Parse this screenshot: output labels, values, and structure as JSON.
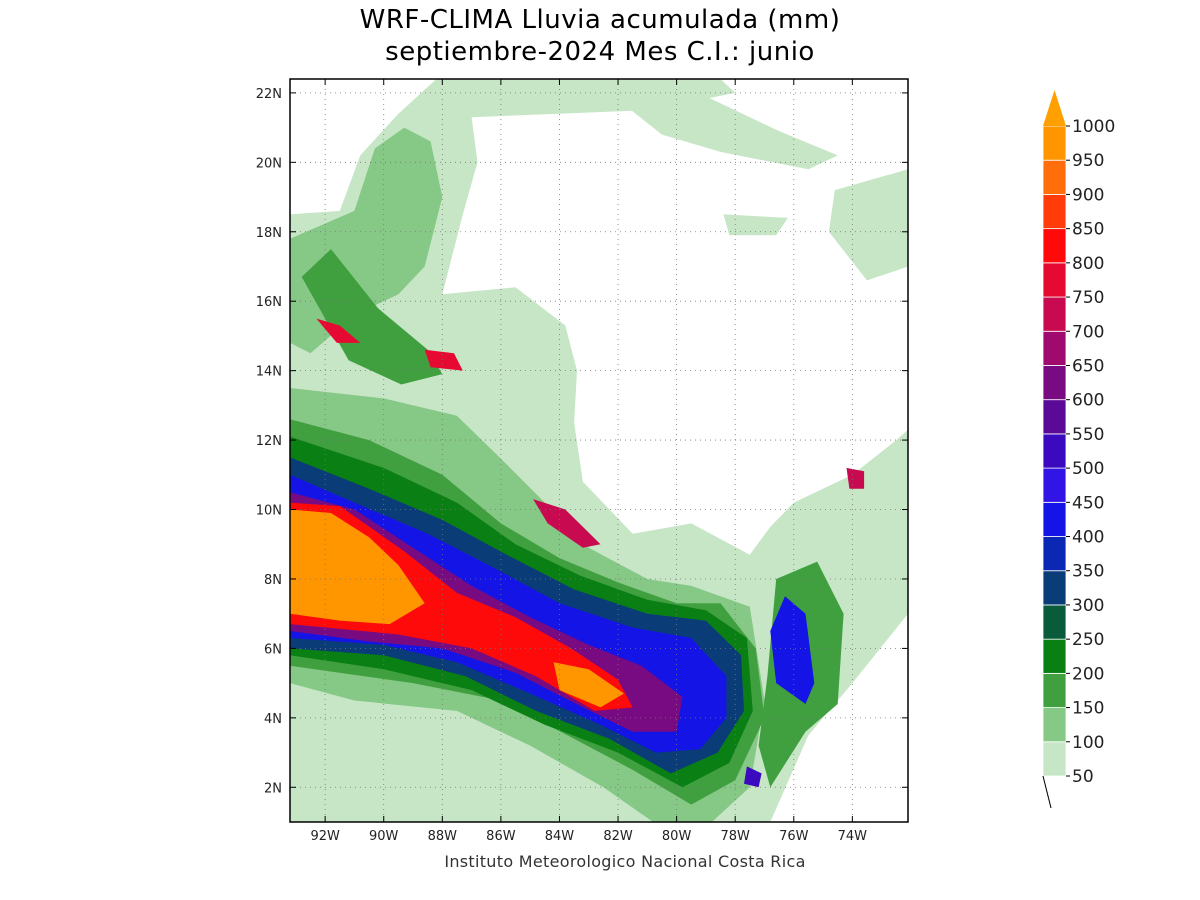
{
  "title": {
    "line1": "WRF-CLIMA Lluvia acumulada (mm)",
    "line2": "septiembre-2024 Mes C.I.: junio"
  },
  "credit": "Instituto Meteorologico Nacional Costa Rica",
  "axes": {
    "x_ticks": [
      "92W",
      "90W",
      "88W",
      "86W",
      "84W",
      "82W",
      "80W",
      "78W",
      "76W",
      "74W"
    ],
    "x_values": [
      -92,
      -90,
      -88,
      -86,
      -84,
      -82,
      -80,
      -78,
      -76,
      -74
    ],
    "y_ticks": [
      "2N",
      "4N",
      "6N",
      "8N",
      "10N",
      "12N",
      "14N",
      "16N",
      "18N",
      "20N",
      "22N"
    ],
    "y_values": [
      2,
      4,
      6,
      8,
      10,
      12,
      14,
      16,
      18,
      20,
      22
    ],
    "lon_range": [
      -93.2,
      -72.1
    ],
    "lat_range": [
      1.0,
      22.4
    ],
    "grid": true
  },
  "colorbar": {
    "levels": [
      "50",
      "100",
      "150",
      "200",
      "250",
      "300",
      "350",
      "400",
      "450",
      "500",
      "550",
      "600",
      "650",
      "700",
      "750",
      "800",
      "850",
      "900",
      "950",
      "1000"
    ],
    "colors": [
      "#c6e6c6",
      "#86c886",
      "#40a040",
      "#0a8014",
      "#0a5a3c",
      "#0a3c78",
      "#0a28b4",
      "#1414e6",
      "#3214e6",
      "#3c0abe",
      "#5a0a96",
      "#780a82",
      "#a00a6e",
      "#c80a50",
      "#e60a32",
      "#ff0a0a",
      "#ff3c0a",
      "#ff6e0a",
      "#ff9600"
    ],
    "overflow_color": "#ffa000"
  },
  "precip_areas": [
    {
      "level": 0,
      "points": [
        [
          -93.2,
          18.5
        ],
        [
          -91.5,
          18.6
        ],
        [
          -90.8,
          20.2
        ],
        [
          -89.5,
          21.4
        ],
        [
          -88.2,
          22.4
        ],
        [
          -78.5,
          22.4
        ],
        [
          -78.0,
          22.0
        ],
        [
          -81.0,
          21.5
        ],
        [
          -87.0,
          21.3
        ],
        [
          -86.8,
          20.0
        ],
        [
          -87.3,
          18.5
        ],
        [
          -88.0,
          16.2
        ],
        [
          -85.5,
          16.4
        ],
        [
          -83.8,
          15.3
        ],
        [
          -83.4,
          14.0
        ],
        [
          -83.5,
          12.5
        ],
        [
          -83.2,
          10.8
        ],
        [
          -81.5,
          9.3
        ],
        [
          -79.5,
          9.6
        ],
        [
          -77.5,
          8.7
        ],
        [
          -76.8,
          9.5
        ],
        [
          -76.0,
          10.2
        ],
        [
          -74.0,
          11.0
        ],
        [
          -72.5,
          12.0
        ],
        [
          -72.1,
          12.3
        ],
        [
          -72.1,
          7.0
        ],
        [
          -74.0,
          5.0
        ],
        [
          -75.5,
          3.5
        ],
        [
          -76.8,
          1.0
        ],
        [
          -93.2,
          1.0
        ]
      ]
    },
    {
      "level": 0,
      "points": [
        [
          -82.0,
          21.8
        ],
        [
          -79.0,
          21.9
        ],
        [
          -76.5,
          20.9
        ],
        [
          -74.5,
          20.2
        ],
        [
          -75.5,
          19.8
        ],
        [
          -78.5,
          20.3
        ],
        [
          -80.5,
          20.8
        ]
      ]
    },
    {
      "level": 0,
      "points": [
        [
          -78.4,
          18.5
        ],
        [
          -76.2,
          18.4
        ],
        [
          -76.6,
          17.9
        ],
        [
          -78.2,
          17.9
        ]
      ]
    },
    {
      "level": 0,
      "points": [
        [
          -74.6,
          19.2
        ],
        [
          -72.1,
          19.8
        ],
        [
          -72.1,
          17.0
        ],
        [
          -73.5,
          16.6
        ],
        [
          -74.8,
          18.0
        ]
      ]
    },
    {
      "level": 1,
      "points": [
        [
          -93.2,
          17.8
        ],
        [
          -91.0,
          18.6
        ],
        [
          -90.3,
          20.4
        ],
        [
          -89.3,
          21.0
        ],
        [
          -88.4,
          20.6
        ],
        [
          -88.0,
          19.0
        ],
        [
          -88.6,
          17.0
        ],
        [
          -89.5,
          16.2
        ],
        [
          -91.0,
          15.6
        ],
        [
          -92.5,
          14.5
        ],
        [
          -93.2,
          14.8
        ]
      ]
    },
    {
      "level": 1,
      "points": [
        [
          -93.2,
          13.5
        ],
        [
          -90.0,
          13.2
        ],
        [
          -87.5,
          12.7
        ],
        [
          -85.8,
          11.3
        ],
        [
          -84.5,
          10.2
        ],
        [
          -83.0,
          8.9
        ],
        [
          -81.0,
          8.0
        ],
        [
          -79.5,
          7.8
        ],
        [
          -77.5,
          7.2
        ],
        [
          -77.0,
          4.5
        ],
        [
          -77.5,
          2.0
        ],
        [
          -78.8,
          1.0
        ],
        [
          -80.8,
          1.0
        ],
        [
          -82.5,
          2.0
        ],
        [
          -85.0,
          3.2
        ],
        [
          -87.5,
          4.2
        ],
        [
          -91.0,
          4.5
        ],
        [
          -93.2,
          5.0
        ]
      ]
    },
    {
      "level": 2,
      "points": [
        [
          -93.2,
          12.6
        ],
        [
          -90.5,
          12.0
        ],
        [
          -88.0,
          11.0
        ],
        [
          -86.0,
          9.6
        ],
        [
          -84.0,
          8.6
        ],
        [
          -82.0,
          7.9
        ],
        [
          -80.0,
          7.3
        ],
        [
          -78.5,
          7.3
        ],
        [
          -77.3,
          6.0
        ],
        [
          -77.0,
          4.0
        ],
        [
          -78.0,
          2.2
        ],
        [
          -79.5,
          1.5
        ],
        [
          -81.5,
          2.5
        ],
        [
          -83.5,
          3.4
        ],
        [
          -86.0,
          4.5
        ],
        [
          -89.0,
          5.0
        ],
        [
          -93.2,
          5.5
        ]
      ]
    },
    {
      "level": 2,
      "points": [
        [
          -92.8,
          16.7
        ],
        [
          -91.8,
          17.5
        ],
        [
          -90.2,
          15.8
        ],
        [
          -88.5,
          14.6
        ],
        [
          -88.0,
          13.9
        ],
        [
          -89.4,
          13.6
        ],
        [
          -91.2,
          14.3
        ]
      ]
    },
    {
      "level": 2,
      "points": [
        [
          -76.6,
          8.0
        ],
        [
          -75.2,
          8.5
        ],
        [
          -74.3,
          7.0
        ],
        [
          -74.5,
          4.4
        ],
        [
          -75.6,
          3.6
        ],
        [
          -76.8,
          2.0
        ],
        [
          -77.2,
          3.2
        ],
        [
          -76.9,
          5.2
        ]
      ]
    },
    {
      "level": 3,
      "points": [
        [
          -93.2,
          12.1
        ],
        [
          -90.0,
          11.2
        ],
        [
          -87.5,
          10.2
        ],
        [
          -85.5,
          9.0
        ],
        [
          -83.3,
          8.1
        ],
        [
          -81.0,
          7.4
        ],
        [
          -79.0,
          7.1
        ],
        [
          -77.6,
          6.3
        ],
        [
          -77.4,
          4.2
        ],
        [
          -78.2,
          2.7
        ],
        [
          -79.8,
          2.0
        ],
        [
          -82.0,
          3.0
        ],
        [
          -84.5,
          3.8
        ],
        [
          -87.0,
          4.8
        ],
        [
          -90.0,
          5.4
        ],
        [
          -93.2,
          5.8
        ]
      ]
    },
    {
      "level": 5,
      "points": [
        [
          -93.2,
          11.5
        ],
        [
          -90.5,
          10.6
        ],
        [
          -88.0,
          9.7
        ],
        [
          -85.8,
          8.7
        ],
        [
          -83.5,
          7.7
        ],
        [
          -81.0,
          7.0
        ],
        [
          -79.0,
          6.8
        ],
        [
          -77.8,
          5.8
        ],
        [
          -77.7,
          4.2
        ],
        [
          -78.6,
          3.0
        ],
        [
          -80.2,
          2.4
        ],
        [
          -82.3,
          3.4
        ],
        [
          -84.8,
          4.2
        ],
        [
          -87.2,
          5.2
        ],
        [
          -90.0,
          5.8
        ],
        [
          -93.2,
          6.0
        ]
      ]
    },
    {
      "level": 7,
      "points": [
        [
          -93.2,
          11.0
        ],
        [
          -91.0,
          10.2
        ],
        [
          -88.5,
          9.3
        ],
        [
          -86.2,
          8.3
        ],
        [
          -84.0,
          7.3
        ],
        [
          -81.5,
          6.6
        ],
        [
          -79.5,
          6.3
        ],
        [
          -78.3,
          5.2
        ],
        [
          -78.3,
          4.0
        ],
        [
          -79.2,
          3.1
        ],
        [
          -80.7,
          3.0
        ],
        [
          -82.6,
          3.8
        ],
        [
          -85.0,
          4.7
        ],
        [
          -87.5,
          5.6
        ],
        [
          -90.0,
          6.1
        ],
        [
          -93.2,
          6.3
        ]
      ]
    },
    {
      "level": 11,
      "points": [
        [
          -93.2,
          10.5
        ],
        [
          -91.0,
          10.0
        ],
        [
          -89.0,
          8.9
        ],
        [
          -87.0,
          7.8
        ],
        [
          -85.0,
          6.9
        ],
        [
          -83.0,
          6.1
        ],
        [
          -81.2,
          5.5
        ],
        [
          -79.8,
          4.6
        ],
        [
          -80.0,
          3.6
        ],
        [
          -81.5,
          3.6
        ],
        [
          -83.2,
          4.3
        ],
        [
          -85.5,
          5.3
        ],
        [
          -88.0,
          6.0
        ],
        [
          -90.5,
          6.2
        ],
        [
          -93.2,
          6.5
        ]
      ]
    },
    {
      "level": 15,
      "points": [
        [
          -93.2,
          10.2
        ],
        [
          -91.5,
          10.1
        ],
        [
          -89.3,
          8.8
        ],
        [
          -87.5,
          7.6
        ],
        [
          -85.5,
          6.9
        ],
        [
          -83.6,
          6.0
        ],
        [
          -82.0,
          5.1
        ],
        [
          -81.5,
          4.3
        ],
        [
          -82.8,
          4.2
        ],
        [
          -84.8,
          5.2
        ],
        [
          -87.0,
          6.0
        ],
        [
          -89.5,
          6.4
        ],
        [
          -93.2,
          6.7
        ]
      ]
    },
    {
      "level": 18,
      "points": [
        [
          -93.2,
          10.0
        ],
        [
          -91.8,
          9.9
        ],
        [
          -90.5,
          9.2
        ],
        [
          -89.5,
          8.4
        ],
        [
          -88.6,
          7.3
        ],
        [
          -89.8,
          6.7
        ],
        [
          -91.5,
          6.8
        ],
        [
          -93.2,
          7.0
        ]
      ]
    },
    {
      "level": 18,
      "points": [
        [
          -84.2,
          5.6
        ],
        [
          -83.0,
          5.4
        ],
        [
          -81.8,
          4.7
        ],
        [
          -82.6,
          4.3
        ],
        [
          -84.0,
          4.8
        ]
      ]
    },
    {
      "level": 14,
      "points": [
        [
          -92.3,
          15.5
        ],
        [
          -91.5,
          15.3
        ],
        [
          -90.8,
          14.8
        ],
        [
          -91.6,
          14.8
        ]
      ]
    },
    {
      "level": 14,
      "points": [
        [
          -88.6,
          14.6
        ],
        [
          -87.6,
          14.5
        ],
        [
          -87.3,
          14.0
        ],
        [
          -88.4,
          14.1
        ]
      ]
    },
    {
      "level": 13,
      "points": [
        [
          -84.9,
          10.3
        ],
        [
          -83.8,
          10.0
        ],
        [
          -82.6,
          9.0
        ],
        [
          -83.2,
          8.9
        ],
        [
          -84.4,
          9.6
        ]
      ]
    },
    {
      "level": 7,
      "points": [
        [
          -76.3,
          7.5
        ],
        [
          -75.6,
          7.0
        ],
        [
          -75.3,
          5.0
        ],
        [
          -75.6,
          4.4
        ],
        [
          -76.6,
          5.0
        ],
        [
          -76.8,
          6.5
        ]
      ]
    },
    {
      "level": 13,
      "points": [
        [
          -74.2,
          11.2
        ],
        [
          -73.6,
          11.1
        ],
        [
          -73.6,
          10.6
        ],
        [
          -74.1,
          10.6
        ]
      ]
    },
    {
      "level": 9,
      "points": [
        [
          -77.6,
          2.6
        ],
        [
          -77.1,
          2.4
        ],
        [
          -77.2,
          2.0
        ],
        [
          -77.7,
          2.1
        ]
      ]
    }
  ]
}
